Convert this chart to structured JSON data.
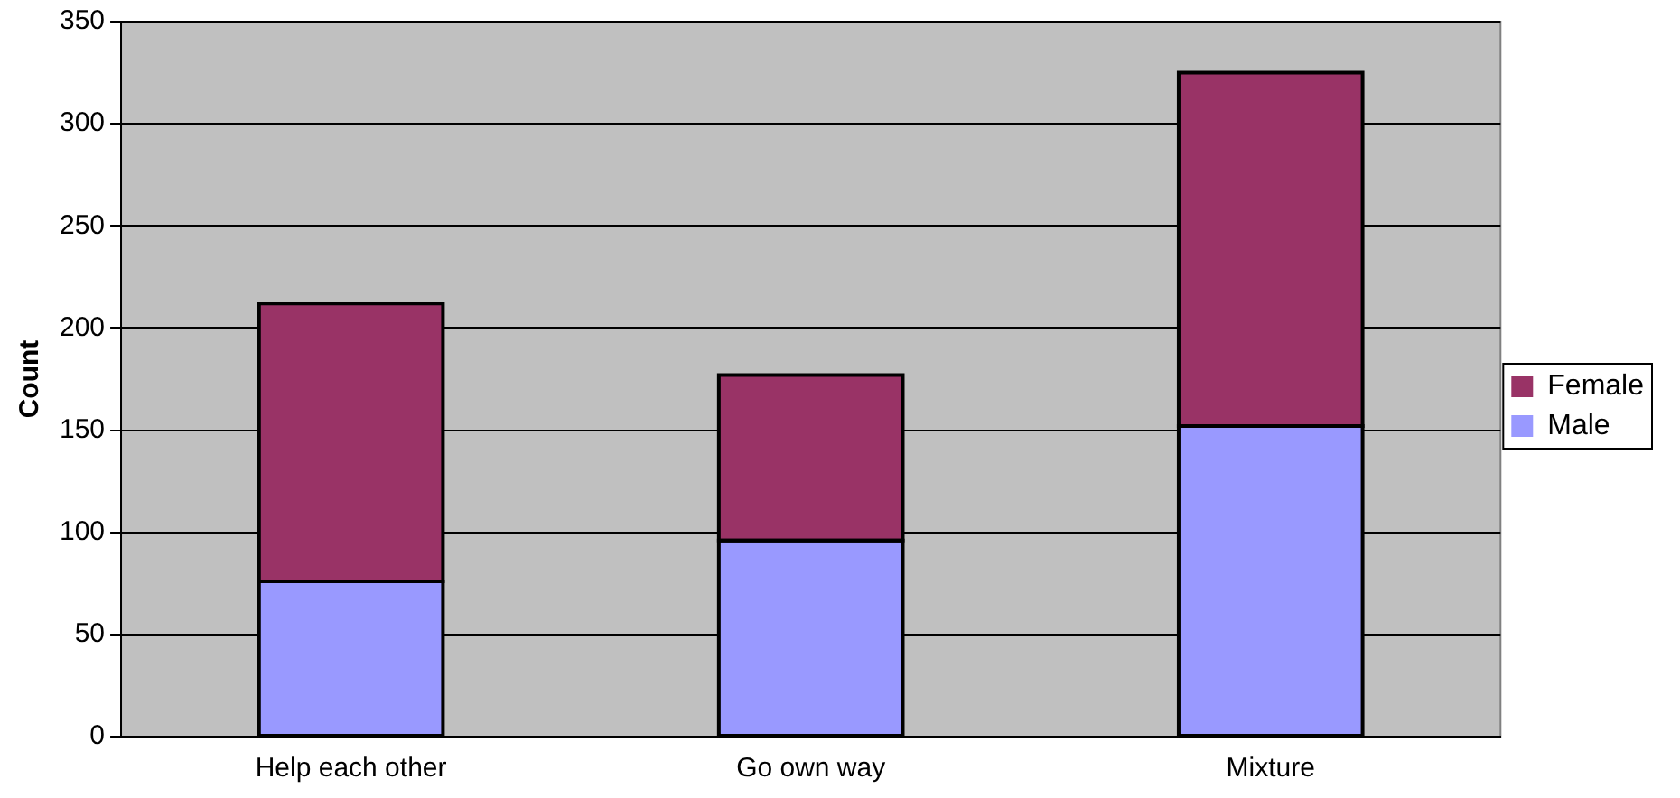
{
  "chart_data": {
    "type": "bar",
    "ylabel": "Count",
    "categories": [
      "Help each other",
      "Go own way",
      "Mixture"
    ],
    "series": [
      {
        "name": "Male",
        "color": "#9999ff",
        "values": [
          76,
          96,
          152
        ]
      },
      {
        "name": "Female",
        "color": "#993366",
        "values": [
          136,
          81,
          173
        ]
      }
    ],
    "stacked": true,
    "ylim": [
      0,
      350
    ],
    "yticks": [
      0,
      50,
      100,
      150,
      200,
      250,
      300,
      350
    ],
    "grid": "y",
    "legend": "right"
  }
}
